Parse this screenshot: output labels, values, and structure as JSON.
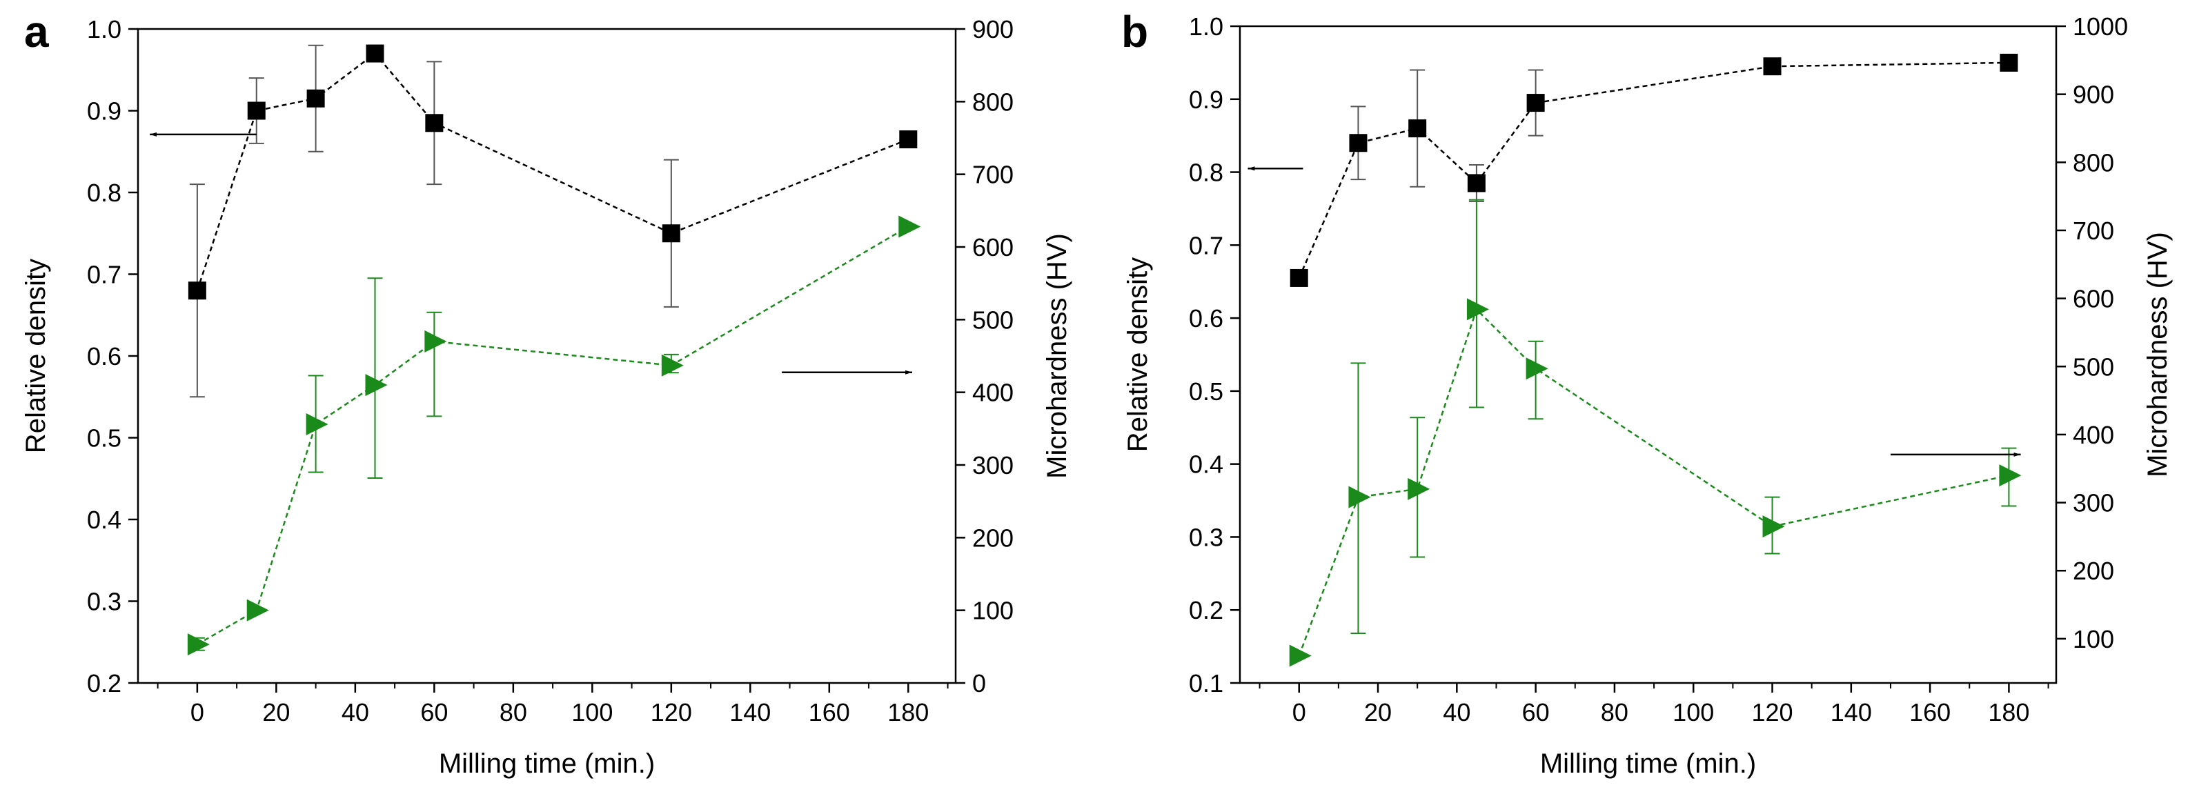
{
  "colors": {
    "density": "#000000",
    "hardness": "#1a8a1a",
    "errorbar_density": "#555555"
  },
  "chart_data": [
    {
      "panel_label": "a",
      "type": "line",
      "xlabel": "Milling time (min.)",
      "ylabel_left": "Relative density",
      "ylabel_right": "Microhardness (HV)",
      "xlim": [
        -15,
        192
      ],
      "xticks": [
        0,
        20,
        40,
        60,
        80,
        100,
        120,
        140,
        160,
        180
      ],
      "ylim_left": [
        0.2,
        1.0
      ],
      "yticks_left": [
        0.2,
        0.3,
        0.4,
        0.5,
        0.6,
        0.7,
        0.8,
        0.9,
        1.0
      ],
      "ylim_right": [
        0,
        900
      ],
      "yticks_right": [
        0,
        100,
        200,
        300,
        400,
        500,
        600,
        700,
        800,
        900
      ],
      "series": [
        {
          "name": "Relative density",
          "axis": "left",
          "marker": "square",
          "x": [
            0,
            15,
            30,
            45,
            60,
            120,
            180
          ],
          "y": [
            0.68,
            0.9,
            0.915,
            0.97,
            0.885,
            0.75,
            0.865
          ],
          "err_low": [
            0.55,
            0.86,
            0.85,
            0.97,
            0.81,
            0.66,
            0.865
          ],
          "err_high": [
            0.81,
            0.94,
            0.98,
            0.97,
            0.96,
            0.84,
            0.865
          ]
        },
        {
          "name": "Microhardness",
          "axis": "right",
          "marker": "triangle-right",
          "x": [
            0,
            15,
            30,
            45,
            60,
            120,
            180
          ],
          "y": [
            53,
            100,
            356,
            410,
            470,
            437,
            628
          ],
          "err_low": [
            45,
            100,
            290,
            282,
            367,
            427,
            628
          ],
          "err_high": [
            62,
            100,
            423,
            557,
            510,
            452,
            628
          ]
        }
      ],
      "annotations": [
        {
          "type": "arrow",
          "direction": "left",
          "points_to": "left axis"
        },
        {
          "type": "arrow",
          "direction": "right",
          "points_to": "right axis"
        }
      ]
    },
    {
      "panel_label": "b",
      "type": "line",
      "xlabel": "Milling time (min.)",
      "ylabel_left": "Relative density",
      "ylabel_right": "Microhardness (HV)",
      "xlim": [
        -15,
        192
      ],
      "xticks": [
        0,
        20,
        40,
        60,
        80,
        100,
        120,
        140,
        160,
        180
      ],
      "ylim_left": [
        0.1,
        1.0
      ],
      "yticks_left": [
        0.1,
        0.2,
        0.3,
        0.4,
        0.5,
        0.6,
        0.7,
        0.8,
        0.9,
        1.0
      ],
      "ylim_right": [
        35,
        1000
      ],
      "yticks_right": [
        100,
        200,
        300,
        400,
        500,
        600,
        700,
        800,
        900,
        1000
      ],
      "series": [
        {
          "name": "Relative density",
          "axis": "left",
          "marker": "square",
          "x": [
            0,
            15,
            30,
            45,
            60,
            120,
            180
          ],
          "y": [
            0.655,
            0.84,
            0.86,
            0.785,
            0.895,
            0.945,
            0.95
          ],
          "err_low": [
            0.655,
            0.79,
            0.78,
            0.76,
            0.85,
            0.935,
            0.95
          ],
          "err_high": [
            0.655,
            0.89,
            0.94,
            0.81,
            0.94,
            0.955,
            0.95
          ]
        },
        {
          "name": "Microhardness",
          "axis": "right",
          "marker": "triangle-right",
          "x": [
            0,
            15,
            30,
            45,
            60,
            120,
            180
          ],
          "y": [
            75,
            308,
            320,
            584,
            497,
            265,
            340
          ],
          "err_low": [
            75,
            108,
            220,
            440,
            423,
            225,
            295
          ],
          "err_high": [
            75,
            505,
            425,
            745,
            537,
            308,
            380
          ]
        }
      ],
      "annotations": [
        {
          "type": "arrow",
          "direction": "left",
          "points_to": "left axis"
        },
        {
          "type": "arrow",
          "direction": "right",
          "points_to": "right axis"
        }
      ]
    }
  ]
}
